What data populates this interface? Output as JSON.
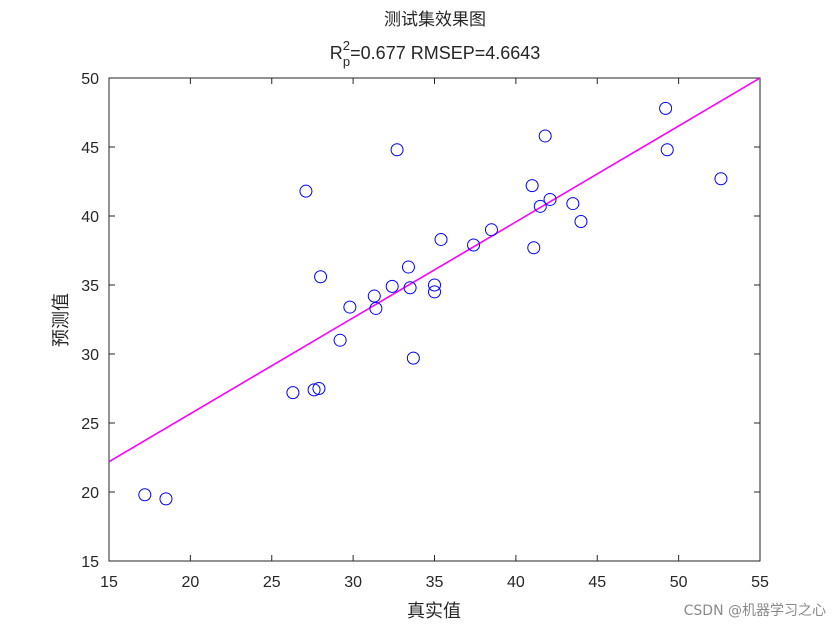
{
  "chart_data": {
    "type": "scatter",
    "title": "测试集效果图",
    "subtitle": {
      "r_base": "R",
      "r_sup": "2",
      "r_sub": "p",
      "rest": "=0.677  RMSEP=4.6643"
    },
    "xlabel": "真实值",
    "ylabel": "预测值",
    "xlim": [
      15,
      55
    ],
    "ylim": [
      15,
      50
    ],
    "xticks": [
      15,
      20,
      25,
      30,
      35,
      40,
      45,
      50,
      55
    ],
    "yticks": [
      15,
      20,
      25,
      30,
      35,
      40,
      45,
      50
    ],
    "grid": false,
    "marker": "circle-open",
    "marker_color": "#0000ff",
    "line_color": "#ff00ff",
    "fit_line": {
      "x": [
        15,
        55
      ],
      "y": [
        22.2,
        50
      ]
    },
    "points": [
      {
        "x": 17.2,
        "y": 19.8
      },
      {
        "x": 18.5,
        "y": 19.5
      },
      {
        "x": 26.3,
        "y": 27.2
      },
      {
        "x": 27.1,
        "y": 41.8
      },
      {
        "x": 27.6,
        "y": 27.4
      },
      {
        "x": 27.9,
        "y": 27.5
      },
      {
        "x": 28.0,
        "y": 35.6
      },
      {
        "x": 29.2,
        "y": 31.0
      },
      {
        "x": 29.8,
        "y": 33.4
      },
      {
        "x": 31.3,
        "y": 34.2
      },
      {
        "x": 31.4,
        "y": 33.3
      },
      {
        "x": 32.4,
        "y": 34.9
      },
      {
        "x": 32.7,
        "y": 44.8
      },
      {
        "x": 33.4,
        "y": 36.3
      },
      {
        "x": 33.5,
        "y": 34.8
      },
      {
        "x": 33.7,
        "y": 29.7
      },
      {
        "x": 35.0,
        "y": 35.0
      },
      {
        "x": 35.0,
        "y": 34.5
      },
      {
        "x": 35.4,
        "y": 38.3
      },
      {
        "x": 37.4,
        "y": 37.9
      },
      {
        "x": 38.5,
        "y": 39.0
      },
      {
        "x": 41.0,
        "y": 42.2
      },
      {
        "x": 41.1,
        "y": 37.7
      },
      {
        "x": 41.5,
        "y": 40.7
      },
      {
        "x": 41.8,
        "y": 45.8
      },
      {
        "x": 42.1,
        "y": 41.2
      },
      {
        "x": 43.5,
        "y": 40.9
      },
      {
        "x": 44.0,
        "y": 39.6
      },
      {
        "x": 49.2,
        "y": 47.8
      },
      {
        "x": 49.3,
        "y": 44.8
      },
      {
        "x": 52.6,
        "y": 42.7
      }
    ]
  },
  "watermark": "CSDN @机器学习之心"
}
